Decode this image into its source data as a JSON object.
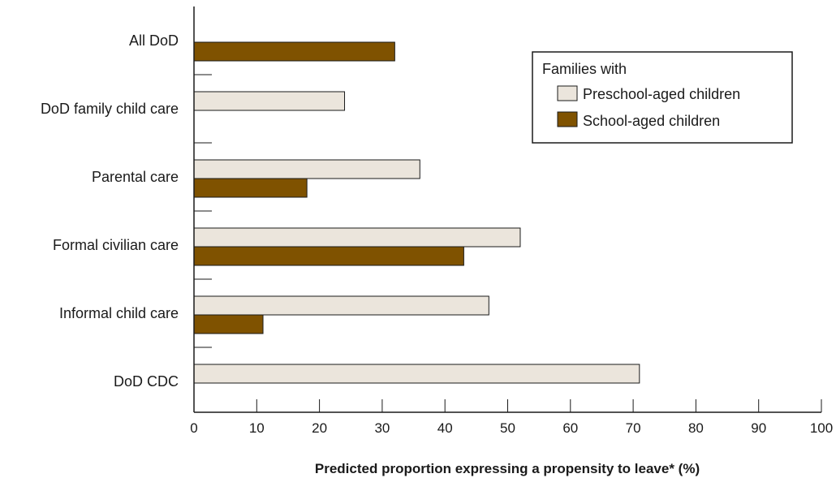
{
  "chart_data": {
    "type": "bar",
    "orientation": "horizontal",
    "categories": [
      "All DoD",
      "DoD family child care",
      "Parental care",
      "Formal civilian care",
      "Informal child care",
      "DoD CDC"
    ],
    "series": [
      {
        "name": "Preschool-aged children",
        "values": [
          null,
          24,
          36,
          52,
          47,
          71
        ],
        "color": "#ebe5dc"
      },
      {
        "name": "School-aged children",
        "values": [
          32,
          null,
          18,
          43,
          11,
          null
        ],
        "color": "#7f5200"
      }
    ],
    "xlabel": "Predicted proportion expressing a propensity to leave* (%)",
    "ylabel": "",
    "xlim": [
      0,
      100
    ],
    "xticks": [
      0,
      10,
      20,
      30,
      40,
      50,
      60,
      70,
      80,
      90,
      100
    ],
    "grid": false,
    "legend": {
      "title": "Families with",
      "placement": "top-right"
    }
  }
}
